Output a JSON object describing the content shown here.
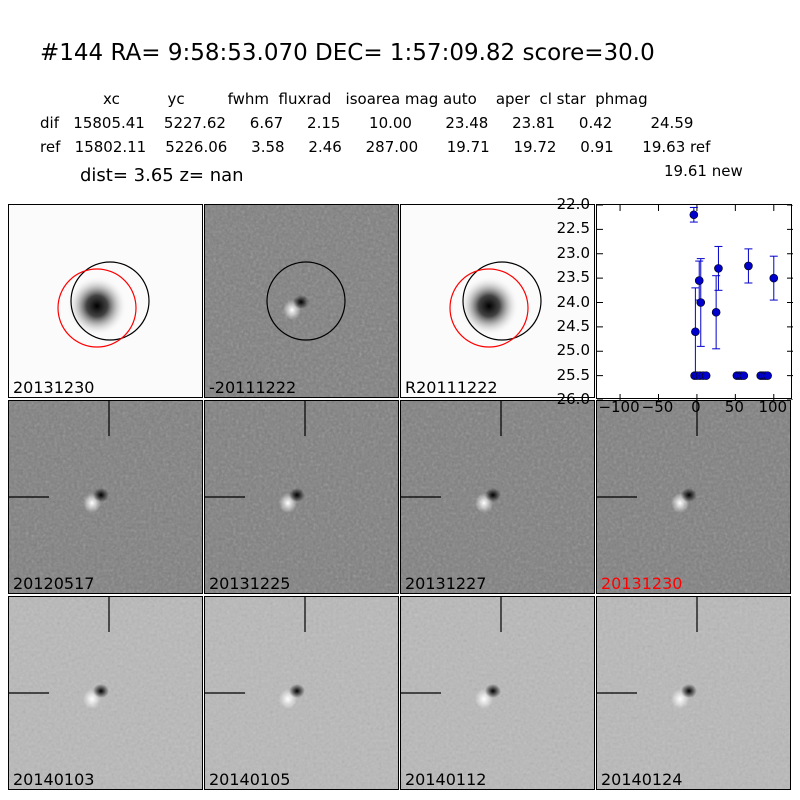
{
  "title": "#144   RA= 9:58:53.070 DEC= 1:57:09.82       score=30.0",
  "table": {
    "header": "xc          yc         fwhm  fluxrad   isoarea mag auto    aper  cl star  phmag",
    "dif_row": "dif   15805.41    5227.62     6.67     2.15      10.00       23.48     23.81     0.42        24.59",
    "ref_row": "ref   15802.11    5226.06     3.58     2.46     287.00      19.71     19.72     0.91      19.63 ref",
    "new_note": "19.61 new"
  },
  "dist_line": "dist=  3.65       z=   nan",
  "panels": [
    {
      "label": "20131230",
      "style": "star",
      "circles": "both"
    },
    {
      "label": "-20111222",
      "style": "diff-dark",
      "circles": "black"
    },
    {
      "label": "R20111222",
      "style": "star",
      "circles": "both"
    },
    {
      "label": "20120517",
      "style": "diff-dark",
      "crosshair": true
    },
    {
      "label": "20131225",
      "style": "diff-dark",
      "crosshair": true
    },
    {
      "label": "20131227",
      "style": "diff-dark",
      "crosshair": true
    },
    {
      "label": "20131230",
      "style": "diff-dark",
      "crosshair": true,
      "label_color": "#ff0000"
    },
    {
      "label": "20140103",
      "style": "diff-light",
      "crosshair": true
    },
    {
      "label": "20140105",
      "style": "diff-light",
      "crosshair": true
    },
    {
      "label": "20140112",
      "style": "diff-light",
      "crosshair": true
    },
    {
      "label": "20140124",
      "style": "diff-light",
      "crosshair": true
    }
  ],
  "colors": {
    "red_circle": "#ff0000",
    "points": "#0000cc",
    "label_red": "#ff0000"
  },
  "chart_data": {
    "type": "scatter",
    "y_inverted": true,
    "xlim": [
      -130,
      125
    ],
    "ylim": [
      22.0,
      26.0
    ],
    "x_ticks": [
      -100,
      -50,
      0,
      50,
      100
    ],
    "x_tick_labels": [
      "−100",
      "−50",
      "0",
      "50",
      "100"
    ],
    "y_ticks": [
      22.0,
      22.5,
      23.0,
      23.5,
      24.0,
      24.5,
      25.0,
      25.5,
      26.0
    ],
    "y_tick_labels": [
      "22.0",
      "22.5",
      "23.0",
      "23.5",
      "24.0",
      "24.5",
      "25.0",
      "25.5",
      "26.0"
    ],
    "points": [
      {
        "x": -4,
        "y": 22.2,
        "err": 0.15
      },
      {
        "x": -2,
        "y": 24.6,
        "err": 0.9
      },
      {
        "x": 3,
        "y": 23.55,
        "err": 0.4
      },
      {
        "x": 5,
        "y": 24.0,
        "err": 0.9
      },
      {
        "x": 25,
        "y": 24.2,
        "err": 0.75
      },
      {
        "x": 28,
        "y": 23.3,
        "err": 0.45
      },
      {
        "x": 67,
        "y": 23.25,
        "err": 0.35
      },
      {
        "x": 100,
        "y": 23.5,
        "err": 0.45
      },
      {
        "x": -3,
        "y": 25.5
      },
      {
        "x": 0,
        "y": 25.5
      },
      {
        "x": 4,
        "y": 25.5
      },
      {
        "x": 8,
        "y": 25.5
      },
      {
        "x": 12,
        "y": 25.5
      },
      {
        "x": 52,
        "y": 25.5
      },
      {
        "x": 55,
        "y": 25.5
      },
      {
        "x": 58,
        "y": 25.5
      },
      {
        "x": 61,
        "y": 25.5
      },
      {
        "x": 83,
        "y": 25.5
      },
      {
        "x": 86,
        "y": 25.5
      },
      {
        "x": 89,
        "y": 25.5
      },
      {
        "x": 92,
        "y": 25.5
      }
    ]
  }
}
